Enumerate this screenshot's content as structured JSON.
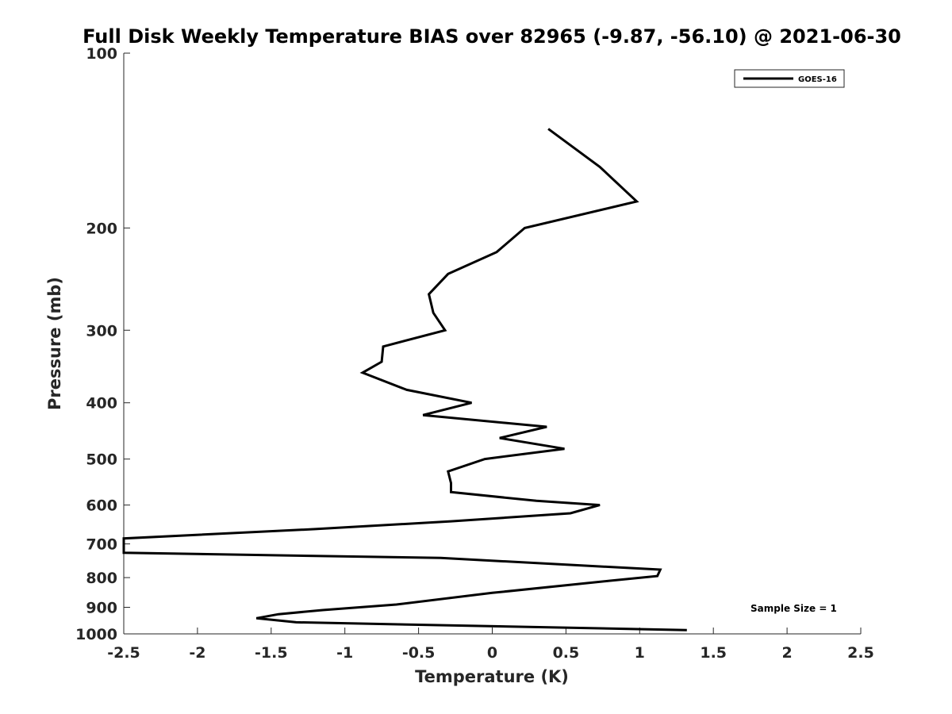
{
  "chart_data": {
    "type": "line",
    "title": "Full Disk Weekly Temperature BIAS over 82965 (-9.87, -56.10) @ 2021-06-30",
    "xlabel": "Temperature (K)",
    "ylabel": "Pressure (mb)",
    "xlim": [
      -2.5,
      2.5
    ],
    "ylim": [
      1000,
      100
    ],
    "y_scale": "log",
    "y_reversed": true,
    "grid": false,
    "legend_position": "top-right",
    "x_ticks": [
      "-2.5",
      "-2",
      "-1.5",
      "-1",
      "-0.5",
      "0",
      "0.5",
      "1",
      "1.5",
      "2",
      "2.5"
    ],
    "y_ticks": [
      "100",
      "200",
      "300",
      "400",
      "500",
      "600",
      "700",
      "800",
      "900",
      "1000"
    ],
    "annotation": "Sample Size = 1",
    "series": [
      {
        "name": "GOES-16",
        "color": "#000000",
        "points": [
          {
            "x": 0.38,
            "y": 135
          },
          {
            "x": 0.73,
            "y": 157
          },
          {
            "x": 0.98,
            "y": 180
          },
          {
            "x": 0.22,
            "y": 200
          },
          {
            "x": 0.03,
            "y": 220
          },
          {
            "x": -0.3,
            "y": 240
          },
          {
            "x": -0.43,
            "y": 260
          },
          {
            "x": -0.4,
            "y": 280
          },
          {
            "x": -0.32,
            "y": 300
          },
          {
            "x": -0.74,
            "y": 320
          },
          {
            "x": -0.75,
            "y": 340
          },
          {
            "x": -0.88,
            "y": 355
          },
          {
            "x": -0.58,
            "y": 380
          },
          {
            "x": -0.14,
            "y": 400
          },
          {
            "x": -0.47,
            "y": 420
          },
          {
            "x": 0.37,
            "y": 440
          },
          {
            "x": 0.05,
            "y": 460
          },
          {
            "x": 0.49,
            "y": 480
          },
          {
            "x": -0.05,
            "y": 500
          },
          {
            "x": -0.3,
            "y": 525
          },
          {
            "x": -0.28,
            "y": 550
          },
          {
            "x": -0.28,
            "y": 570
          },
          {
            "x": 0.3,
            "y": 590
          },
          {
            "x": 0.73,
            "y": 600
          },
          {
            "x": 0.53,
            "y": 620
          },
          {
            "x": -0.28,
            "y": 640
          },
          {
            "x": -1.2,
            "y": 660
          },
          {
            "x": -2.5,
            "y": 685
          },
          {
            "x": -2.5,
            "y": 725
          },
          {
            "x": -0.35,
            "y": 740
          },
          {
            "x": 1.14,
            "y": 775
          },
          {
            "x": 1.12,
            "y": 795
          },
          {
            "x": 0.8,
            "y": 810
          },
          {
            "x": 0.0,
            "y": 850
          },
          {
            "x": -0.65,
            "y": 890
          },
          {
            "x": -1.15,
            "y": 910
          },
          {
            "x": -1.45,
            "y": 925
          },
          {
            "x": -1.6,
            "y": 940
          },
          {
            "x": -1.33,
            "y": 955
          },
          {
            "x": 1.32,
            "y": 985
          }
        ]
      }
    ]
  }
}
